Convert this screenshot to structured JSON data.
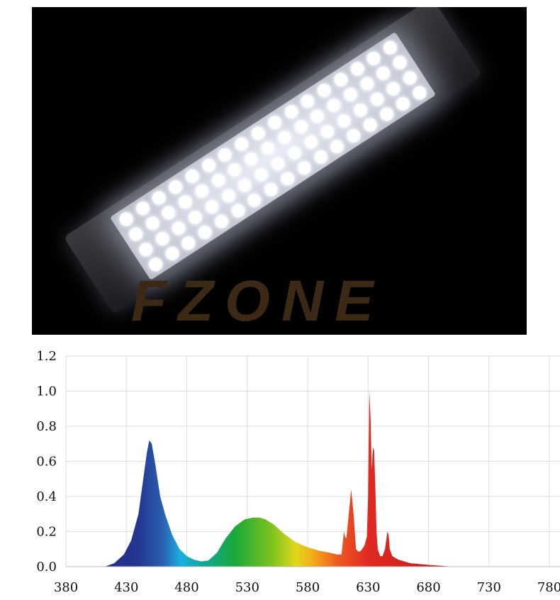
{
  "photo": {
    "logo_text": "FZONE",
    "led_rows": 4,
    "led_cols": 17
  },
  "chart_data": {
    "type": "area",
    "title": "",
    "xlabel": "",
    "ylabel": "",
    "xlim": [
      380,
      790
    ],
    "ylim": [
      0,
      1.2
    ],
    "grid": true,
    "x_ticks": [
      "380",
      "430",
      "480",
      "530",
      "580",
      "630",
      "680",
      "730",
      "780"
    ],
    "y_ticks": [
      "0.0",
      "0.2",
      "0.4",
      "0.6",
      "0.8",
      "1.0",
      "1.2"
    ],
    "fill": "wavelength-colored spectrum",
    "x": [
      412,
      420,
      428,
      434,
      440,
      444,
      447,
      449,
      451,
      454,
      458,
      462,
      468,
      474,
      480,
      486,
      492,
      498,
      505,
      512,
      520,
      528,
      535,
      540,
      545,
      552,
      560,
      570,
      580,
      590,
      598,
      604,
      608,
      610,
      611,
      612,
      614,
      616,
      618,
      620,
      622,
      624,
      627,
      629,
      630,
      631,
      632,
      633,
      634,
      635,
      636,
      637,
      638,
      640,
      642,
      644,
      646,
      647,
      648,
      650,
      655,
      665,
      680,
      700
    ],
    "y": [
      0.0,
      0.02,
      0.07,
      0.15,
      0.3,
      0.5,
      0.65,
      0.72,
      0.7,
      0.58,
      0.4,
      0.3,
      0.18,
      0.1,
      0.06,
      0.04,
      0.03,
      0.035,
      0.08,
      0.16,
      0.23,
      0.27,
      0.28,
      0.28,
      0.27,
      0.24,
      0.19,
      0.14,
      0.11,
      0.09,
      0.08,
      0.07,
      0.07,
      0.2,
      0.17,
      0.16,
      0.3,
      0.44,
      0.3,
      0.1,
      0.085,
      0.09,
      0.12,
      0.17,
      0.4,
      1.0,
      0.85,
      0.55,
      0.68,
      0.66,
      0.45,
      0.2,
      0.1,
      0.06,
      0.06,
      0.1,
      0.2,
      0.18,
      0.1,
      0.06,
      0.04,
      0.02,
      0.01,
      0.0
    ]
  }
}
